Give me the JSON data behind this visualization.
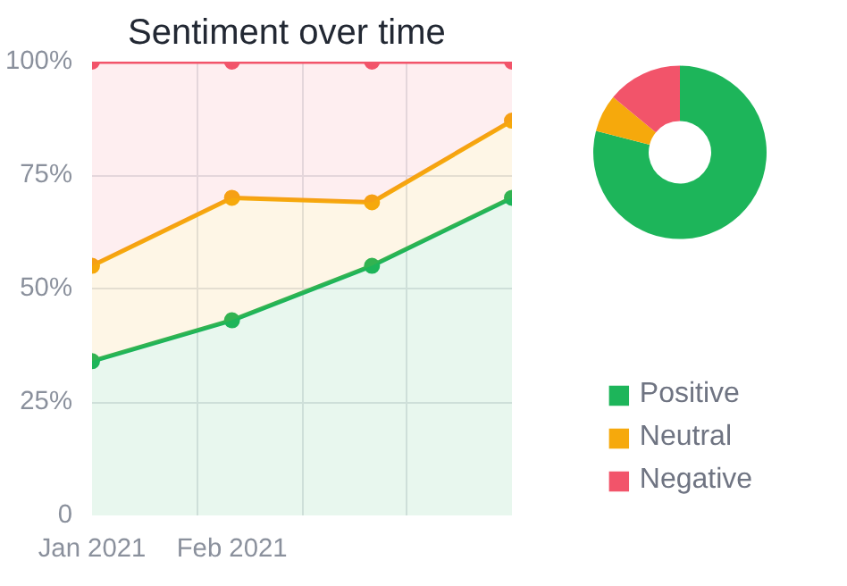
{
  "chart_data": [
    {
      "type": "area",
      "title": "Sentiment over time",
      "stacked": true,
      "marker": "circle",
      "grid": true,
      "categories": [
        "Jan 2021",
        "Feb 2021",
        null,
        null
      ],
      "ylim": [
        0,
        100
      ],
      "yticks": [
        0,
        {
          "value": 25,
          "label": "25%"
        },
        {
          "value": 50,
          "label": "50%"
        },
        {
          "value": 75,
          "label": "75%"
        },
        {
          "value": 100,
          "label": "100%"
        }
      ],
      "series": [
        {
          "color": "#1db55a",
          "values": [
            34,
            43,
            55,
            70
          ]
        },
        {
          "color": "#f6a90c",
          "values": [
            21,
            27,
            14,
            17
          ]
        },
        {
          "color": "#f2546a",
          "values": [
            45,
            30,
            31,
            13
          ]
        }
      ]
    },
    {
      "type": "donut",
      "categories": [
        "Positive",
        "Neutral",
        "Negative"
      ],
      "values": [
        79,
        7,
        14
      ],
      "colors": [
        "#1db55a",
        "#f6a90c",
        "#f2546a"
      ],
      "legend": "bottom"
    }
  ]
}
